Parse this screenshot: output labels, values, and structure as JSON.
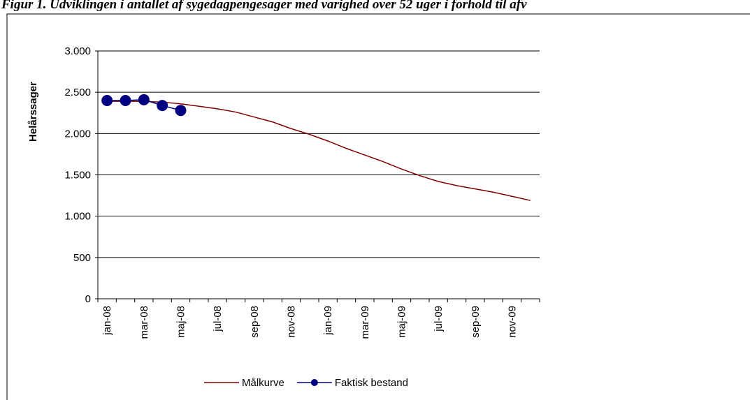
{
  "chart_data": {
    "type": "line",
    "title": "Figur 1. Udviklingen i antallet af sygedagpengesager med varighed over 52 uger i forhold til afv",
    "y_label": "Helårssager",
    "categories": [
      "jan-08",
      null,
      "mar-08",
      null,
      "maj-08",
      null,
      "jul-08",
      null,
      "sep-08",
      null,
      "nov-08",
      null,
      "jan-09",
      null,
      "mar-09",
      null,
      "maj-09",
      null,
      "jul-09",
      null,
      "sep-09",
      null,
      "nov-09",
      null
    ],
    "series": [
      {
        "name": "Målkurve",
        "color": "#800000",
        "marker": false,
        "values": [
          2390,
          2390,
          2390,
          2380,
          2360,
          2330,
          2300,
          2260,
          2200,
          2140,
          2060,
          1990,
          1910,
          1820,
          1740,
          1660,
          1570,
          1490,
          1420,
          1370,
          1330,
          1290,
          1240,
          1190
        ]
      },
      {
        "name": "Faktisk bestand",
        "color": "#000080",
        "marker": true,
        "values": [
          2400,
          2400,
          2410,
          2340,
          2280,
          null,
          null,
          null,
          null,
          null,
          null,
          null,
          null,
          null,
          null,
          null,
          null,
          null,
          null,
          null,
          null,
          null,
          null,
          null
        ]
      }
    ],
    "ylim": [
      0,
      3000
    ],
    "yticks": [
      0,
      500,
      {
        "value": 1000,
        "label": "1.000"
      },
      {
        "value": 1500,
        "label": "1.500"
      },
      {
        "value": 2000,
        "label": "2.000"
      },
      {
        "value": 2500,
        "label": "2.500"
      },
      {
        "value": 3000,
        "label": "3.000"
      }
    ],
    "grid": true,
    "legend": "bottom"
  }
}
